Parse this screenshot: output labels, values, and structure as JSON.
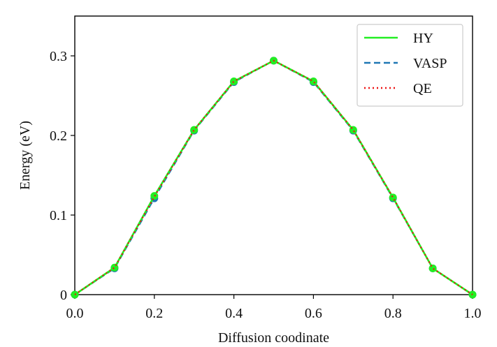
{
  "chart_data": {
    "type": "line",
    "title": "",
    "xlabel": "Diffusion coodinate",
    "ylabel": "Energy (eV)",
    "xlim": [
      0.0,
      1.0
    ],
    "ylim": [
      0.0,
      0.35
    ],
    "x_ticks": [
      0.0,
      0.2,
      0.4,
      0.6,
      0.8,
      1.0
    ],
    "x_tick_labels": [
      "0.0",
      "0.2",
      "0.4",
      "0.6",
      "0.8",
      "1.0"
    ],
    "y_ticks": [
      0.0,
      0.1,
      0.2,
      0.3
    ],
    "y_tick_labels": [
      "0",
      "0.1",
      "0.2",
      "0.3"
    ],
    "grid": false,
    "legend_position": "top-right",
    "x": [
      0.0,
      0.1,
      0.2,
      0.3,
      0.4,
      0.5,
      0.6,
      0.7,
      0.8,
      0.9,
      1.0
    ],
    "series": [
      {
        "name": "HY",
        "values": [
          0.0,
          0.034,
          0.124,
          0.207,
          0.268,
          0.294,
          0.268,
          0.207,
          0.122,
          0.033,
          0.0
        ],
        "color": "#22ee22",
        "style": "solid",
        "markers": true
      },
      {
        "name": "VASP",
        "values": [
          0.0,
          0.033,
          0.121,
          0.206,
          0.267,
          0.294,
          0.267,
          0.206,
          0.121,
          0.033,
          0.0
        ],
        "color": "#1f77b4",
        "style": "dashed",
        "markers": true
      },
      {
        "name": "QE",
        "values": [
          0.0,
          0.034,
          0.123,
          0.207,
          0.268,
          0.294,
          0.268,
          0.207,
          0.122,
          0.033,
          0.0
        ],
        "color": "#ee1111",
        "style": "dotted",
        "markers": false
      }
    ]
  }
}
